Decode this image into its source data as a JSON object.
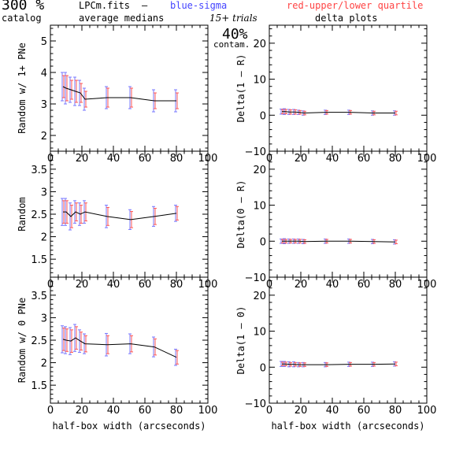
{
  "header": {
    "percent": "300 %",
    "catalog": "catalog",
    "file": "LPCm.fits",
    "dash": "–",
    "blue_text": "blue-sigma",
    "red_text": "red-upper/lower quartile",
    "avg_medians": "average medians",
    "trials": "15+ trials",
    "contam_pct": "40%",
    "contam": "contam.",
    "delta_plots": "delta plots"
  },
  "colors": {
    "blue": "#7777ff",
    "red": "#ff5555",
    "line": "#000000"
  },
  "chart_data": [
    {
      "type": "line",
      "panel": "left-top",
      "xlabel": "",
      "ylabel": "Random w/ 1+ PNe",
      "xlim": [
        0,
        100
      ],
      "ylim": [
        1.5,
        5.5
      ],
      "xticks": [
        "0",
        "20",
        "40",
        "60",
        "80",
        "100"
      ],
      "yticks": [
        "2",
        "3",
        "4",
        "5"
      ],
      "x": [
        8,
        10,
        13,
        16,
        19,
        22,
        36,
        51,
        66,
        80
      ],
      "y": [
        3.55,
        3.5,
        3.45,
        3.4,
        3.35,
        3.15,
        3.2,
        3.2,
        3.1,
        3.1
      ],
      "sigma": [
        0.45,
        0.5,
        0.4,
        0.45,
        0.4,
        0.35,
        0.35,
        0.35,
        0.35,
        0.35
      ],
      "quart": [
        0.35,
        0.4,
        0.3,
        0.35,
        0.3,
        0.25,
        0.3,
        0.3,
        0.25,
        0.25
      ]
    },
    {
      "type": "line",
      "panel": "right-top",
      "xlabel": "",
      "ylabel": "Delta(1 – R)",
      "xlim": [
        0,
        100
      ],
      "ylim": [
        -10,
        25
      ],
      "xticks": [
        "0",
        "20",
        "40",
        "60",
        "80",
        "100"
      ],
      "yticks": [
        "−10",
        "0",
        "10",
        "20"
      ],
      "x": [
        8,
        10,
        13,
        16,
        19,
        22,
        36,
        51,
        66,
        80
      ],
      "y": [
        1.0,
        1.0,
        0.9,
        0.9,
        0.8,
        0.6,
        0.8,
        0.8,
        0.6,
        0.6
      ],
      "sigma": [
        0.7,
        0.8,
        0.7,
        0.7,
        0.6,
        0.6,
        0.6,
        0.6,
        0.6,
        0.6
      ],
      "quart": [
        0.6,
        0.6,
        0.6,
        0.6,
        0.5,
        0.5,
        0.5,
        0.5,
        0.5,
        0.5
      ]
    },
    {
      "type": "line",
      "panel": "left-middle",
      "xlabel": "",
      "ylabel": "Random",
      "xlim": [
        0,
        100
      ],
      "ylim": [
        1.1,
        3.9
      ],
      "xticks": [
        "0",
        "20",
        "40",
        "60",
        "80",
        "100"
      ],
      "yticks": [
        "1.5",
        "2",
        "2.5",
        "3",
        "3.5"
      ],
      "x": [
        8,
        10,
        13,
        16,
        19,
        22,
        36,
        51,
        66,
        80
      ],
      "y": [
        2.55,
        2.55,
        2.45,
        2.55,
        2.5,
        2.55,
        2.45,
        2.38,
        2.45,
        2.52
      ],
      "sigma": [
        0.3,
        0.3,
        0.3,
        0.25,
        0.25,
        0.25,
        0.25,
        0.22,
        0.22,
        0.18
      ],
      "quart": [
        0.25,
        0.25,
        0.25,
        0.2,
        0.2,
        0.2,
        0.2,
        0.18,
        0.18,
        0.15
      ]
    },
    {
      "type": "line",
      "panel": "right-middle",
      "xlabel": "",
      "ylabel": "Delta(0 – R)",
      "xlim": [
        0,
        100
      ],
      "ylim": [
        -10,
        25
      ],
      "xticks": [
        "0",
        "20",
        "40",
        "60",
        "80",
        "100"
      ],
      "yticks": [
        "−10",
        "0",
        "10",
        "20"
      ],
      "x": [
        8,
        10,
        13,
        16,
        19,
        22,
        36,
        51,
        66,
        80
      ],
      "y": [
        0.0,
        0.0,
        0.0,
        0.0,
        0.0,
        -0.1,
        0.0,
        0.0,
        -0.1,
        -0.2
      ],
      "sigma": [
        0.6,
        0.7,
        0.6,
        0.6,
        0.6,
        0.6,
        0.6,
        0.6,
        0.6,
        0.6
      ],
      "quart": [
        0.5,
        0.5,
        0.5,
        0.5,
        0.5,
        0.5,
        0.5,
        0.5,
        0.5,
        0.5
      ]
    },
    {
      "type": "line",
      "panel": "left-bottom",
      "xlabel": "half-box width (arcseconds)",
      "ylabel": "Random w/ 0 PNe",
      "xlim": [
        0,
        100
      ],
      "ylim": [
        1.1,
        3.9
      ],
      "xticks": [
        "0",
        "20",
        "40",
        "60",
        "80",
        "100"
      ],
      "yticks": [
        "1.5",
        "2",
        "2.5",
        "3",
        "3.5"
      ],
      "x": [
        8,
        10,
        13,
        16,
        19,
        22,
        36,
        51,
        66,
        80
      ],
      "y": [
        2.52,
        2.5,
        2.48,
        2.55,
        2.48,
        2.42,
        2.4,
        2.42,
        2.35,
        2.12
      ],
      "sigma": [
        0.3,
        0.3,
        0.3,
        0.3,
        0.25,
        0.22,
        0.25,
        0.22,
        0.22,
        0.18
      ],
      "quart": [
        0.25,
        0.25,
        0.25,
        0.25,
        0.2,
        0.18,
        0.2,
        0.18,
        0.18,
        0.15
      ]
    },
    {
      "type": "line",
      "panel": "right-bottom",
      "xlabel": "half-box width (arcseconds)",
      "ylabel": "Delta(1 – 0)",
      "xlim": [
        0,
        100
      ],
      "ylim": [
        -10,
        25
      ],
      "xticks": [
        "0",
        "20",
        "40",
        "60",
        "80",
        "100"
      ],
      "yticks": [
        "−10",
        "0",
        "10",
        "20"
      ],
      "x": [
        8,
        10,
        13,
        16,
        19,
        22,
        36,
        51,
        66,
        80
      ],
      "y": [
        0.9,
        0.9,
        0.8,
        0.8,
        0.7,
        0.7,
        0.7,
        0.8,
        0.8,
        0.9
      ],
      "sigma": [
        0.7,
        0.7,
        0.7,
        0.7,
        0.6,
        0.6,
        0.6,
        0.6,
        0.6,
        0.6
      ],
      "quart": [
        0.5,
        0.5,
        0.5,
        0.5,
        0.5,
        0.5,
        0.5,
        0.5,
        0.5,
        0.5
      ]
    }
  ]
}
